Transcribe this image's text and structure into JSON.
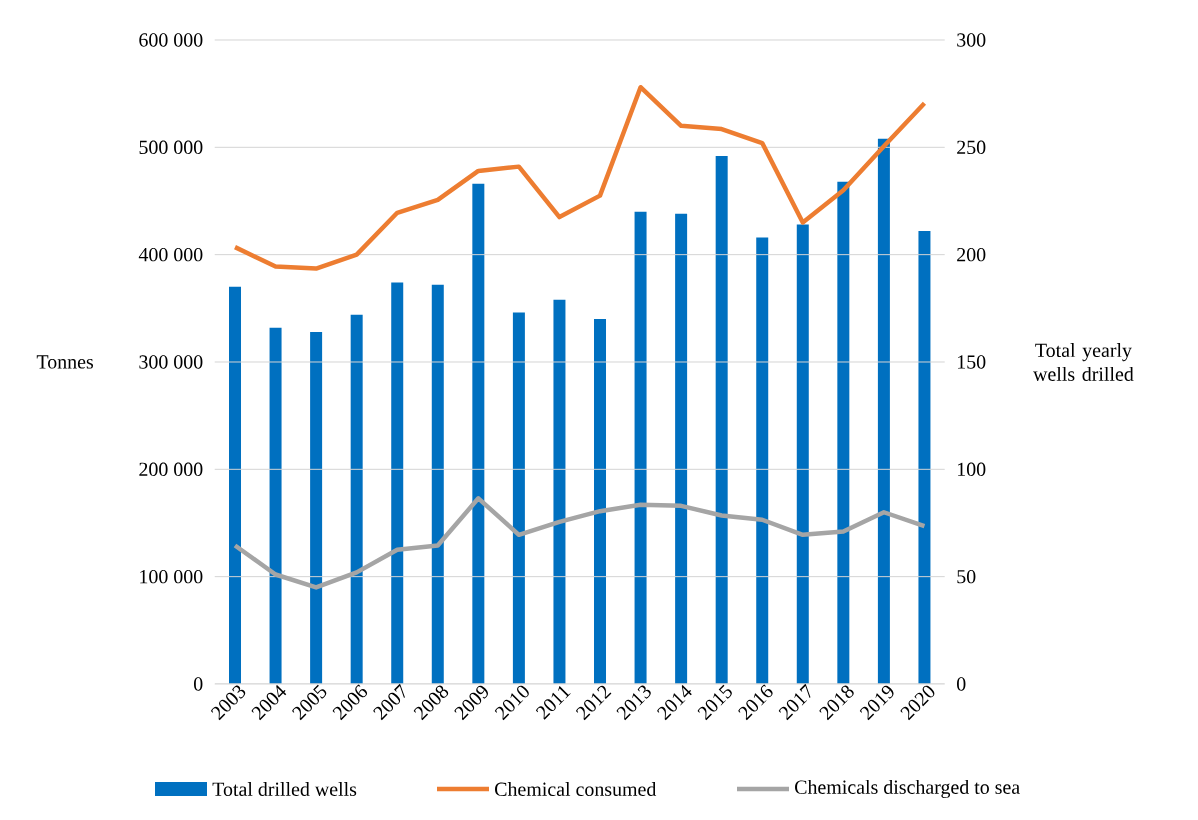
{
  "chart_data": {
    "type": "bar",
    "categories": [
      "2003",
      "2004",
      "2005",
      "2006",
      "2007",
      "2008",
      "2009",
      "2010",
      "2011",
      "2012",
      "2013",
      "2014",
      "2015",
      "2016",
      "2017",
      "2018",
      "2019",
      "2020"
    ],
    "series": [
      {
        "name": "Total drilled wells",
        "axis": "y2",
        "color": "#0070c0",
        "values": [
          185,
          166,
          164,
          172,
          187,
          186,
          233,
          173,
          179,
          170,
          220,
          219,
          246,
          208,
          214,
          234,
          254,
          211
        ]
      },
      {
        "name": "Chemical consumed",
        "type": "line",
        "color": "#ed7d31",
        "values": [
          407000,
          389000,
          387000,
          400000,
          439000,
          451000,
          478000,
          482000,
          435000,
          455000,
          556000,
          520000,
          517000,
          504000,
          430000,
          460000,
          501000,
          541000
        ]
      },
      {
        "name": "Chemicals discharged to sea",
        "type": "line",
        "color": "#a5a5a5",
        "values": [
          129000,
          102000,
          90000,
          104000,
          125000,
          129000,
          173000,
          139000,
          151000,
          161000,
          167000,
          166000,
          157000,
          153000,
          139000,
          142000,
          160000,
          147000
        ]
      }
    ],
    "ylabel": "Tonnes",
    "y2label": "Total yearly wells drilled",
    "ylim": [
      0,
      600000
    ],
    "yticks": [
      {
        "value": 0,
        "label": "0"
      },
      {
        "value": 100000,
        "label": "100 000"
      },
      {
        "value": 200000,
        "label": "200 000"
      },
      {
        "value": 300000,
        "label": "300 000"
      },
      {
        "value": 400000,
        "label": "400 000"
      },
      {
        "value": 500000,
        "label": "500 000"
      },
      {
        "value": 600000,
        "label": "600 000"
      }
    ],
    "y2lim": [
      0,
      300
    ],
    "y2ticks": [
      0,
      50,
      100,
      150,
      200,
      250,
      300
    ],
    "grid": "y",
    "legend": "bottom",
    "line_style": "solid",
    "marker": "none"
  }
}
